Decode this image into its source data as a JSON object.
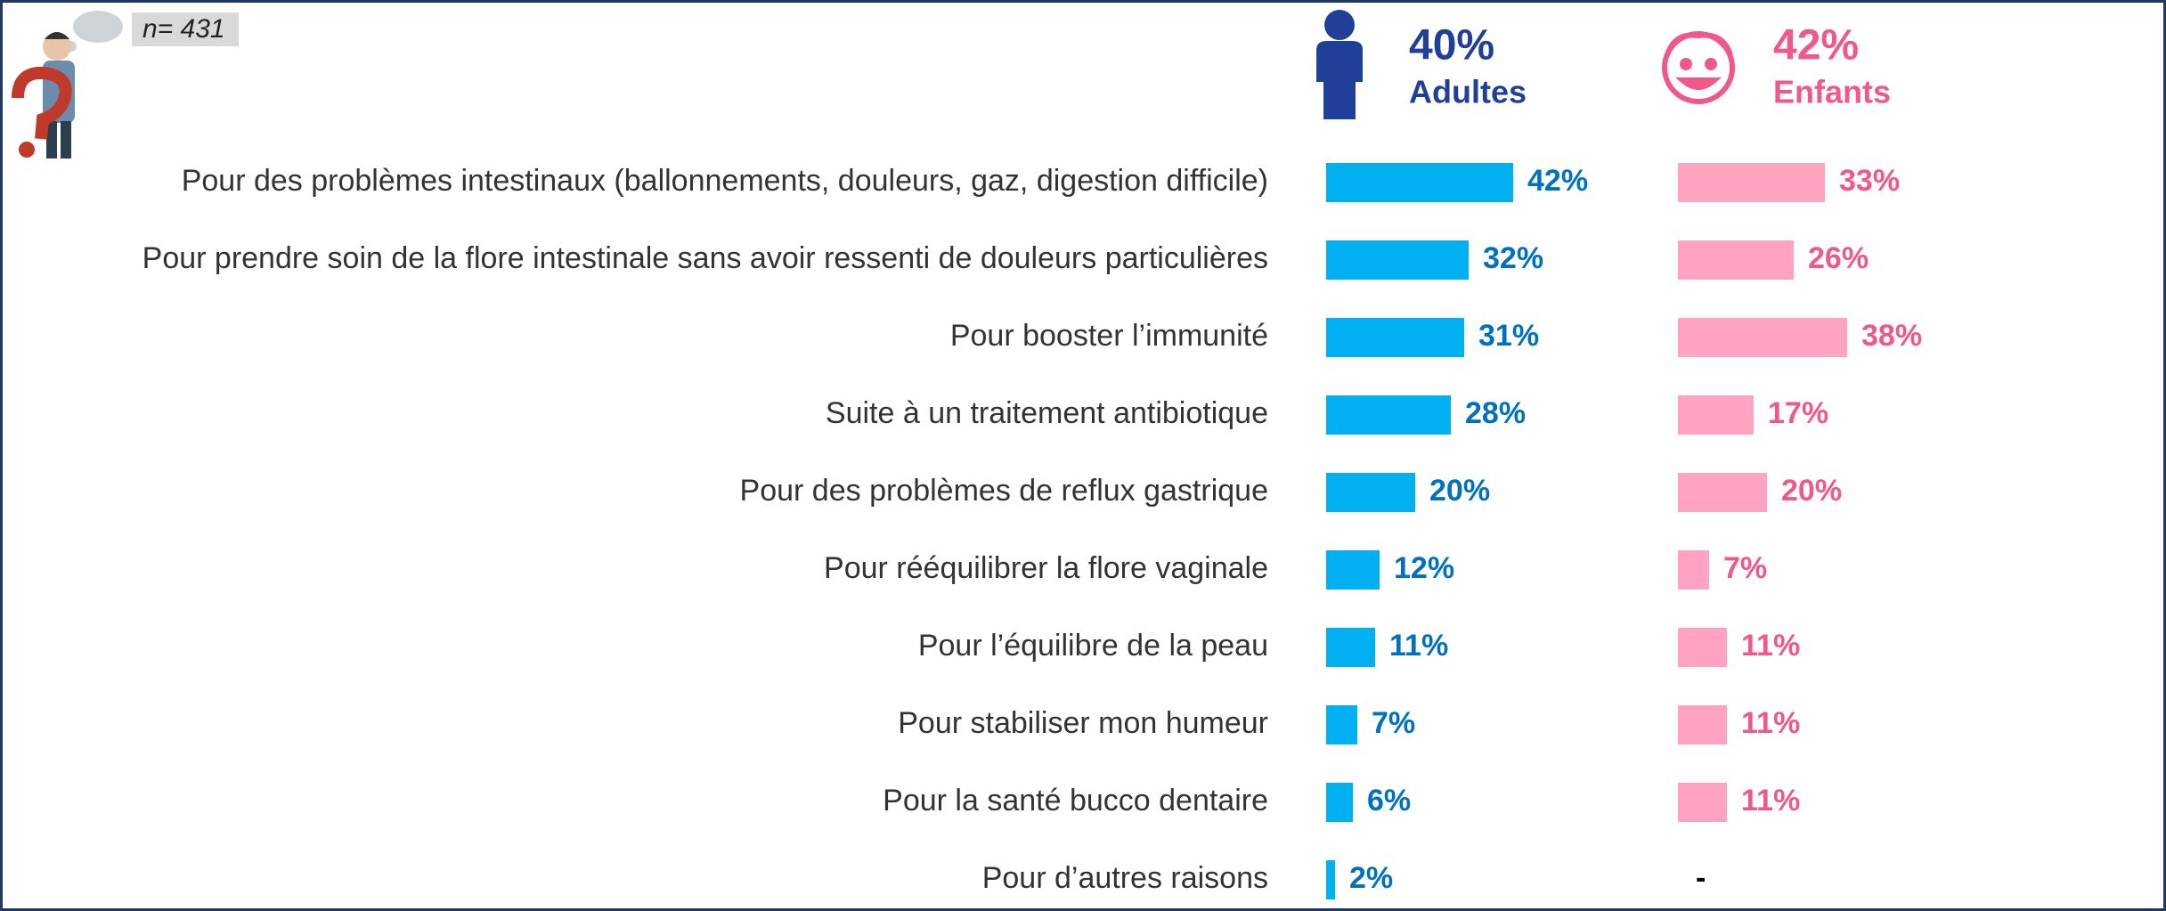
{
  "chart_data": {
    "type": "bar",
    "orientation": "horizontal",
    "annotation": "n= 431",
    "categories": [
      "Pour des problèmes intestinaux (ballonnements, douleurs, gaz, digestion difficile)",
      "Pour prendre soin de la flore intestinale sans avoir ressenti de douleurs particulières",
      "Pour booster l’immunité",
      "Suite à un traitement antibiotique",
      "Pour des problèmes de reflux gastrique",
      "Pour rééquilibrer la flore vaginale",
      "Pour l’équilibre de la peau",
      "Pour stabiliser mon humeur",
      "Pour la santé bucco dentaire",
      "Pour d’autres raisons"
    ],
    "series": [
      {
        "name": "Adultes",
        "share": "40%",
        "color": "#00b0f0",
        "label_color": "#0070c0",
        "header_color": "#1f3f99",
        "values": [
          42,
          32,
          31,
          28,
          20,
          12,
          11,
          7,
          6,
          2
        ],
        "value_labels": [
          "42%",
          "32%",
          "31%",
          "28%",
          "20%",
          "12%",
          "11%",
          "7%",
          "6%",
          "2%"
        ]
      },
      {
        "name": "Enfants",
        "share": "42%",
        "color": "#ffa3c0",
        "label_color": "#f0588a",
        "header_color": "#f0588a",
        "values": [
          33,
          26,
          38,
          17,
          20,
          7,
          11,
          11,
          11,
          null
        ],
        "value_labels": [
          "33%",
          "26%",
          "38%",
          "17%",
          "20%",
          "7%",
          "11%",
          "11%",
          "11%",
          "-"
        ]
      }
    ]
  }
}
